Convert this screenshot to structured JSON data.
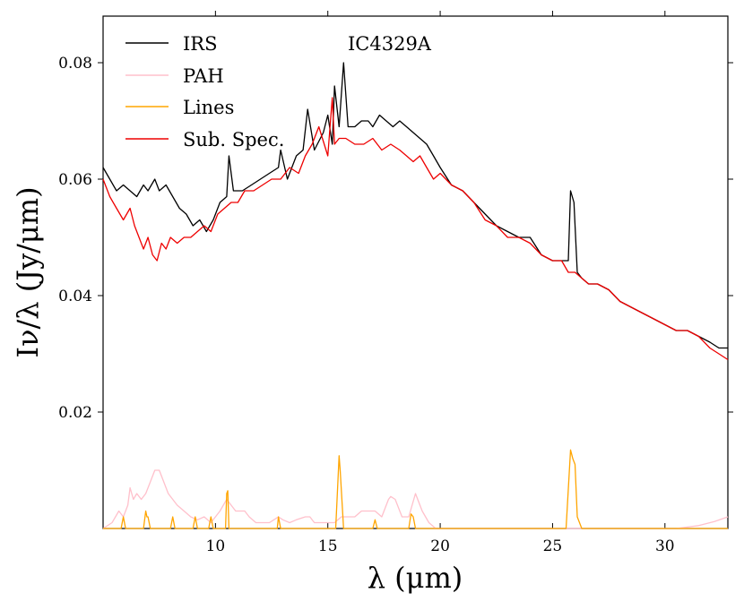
{
  "chart_data": {
    "type": "line",
    "annotation": "IC4329A",
    "xlabel": "λ (μm)",
    "ylabel": "Iν/λ (Jy/μm)",
    "xlim": [
      5.0,
      32.8
    ],
    "ylim": [
      0.0,
      0.088
    ],
    "xticks": [
      10,
      15,
      20,
      25,
      30
    ],
    "xtick_labels": [
      "10",
      "15",
      "20",
      "25",
      "30"
    ],
    "yticks": [
      0.02,
      0.04,
      0.06,
      0.08
    ],
    "ytick_labels": [
      "0.02",
      "0.04",
      "0.06",
      "0.08"
    ],
    "legend_position": "top-left",
    "series": [
      {
        "name": "IRS",
        "color": "#000000",
        "x": [
          5.0,
          5.3,
          5.6,
          5.9,
          6.2,
          6.5,
          6.8,
          7.0,
          7.3,
          7.5,
          7.8,
          8.1,
          8.4,
          8.7,
          9.0,
          9.3,
          9.6,
          9.9,
          10.2,
          10.5,
          10.6,
          10.8,
          11.2,
          11.6,
          12.0,
          12.4,
          12.8,
          12.9,
          13.2,
          13.6,
          13.9,
          14.1,
          14.4,
          14.8,
          15.0,
          15.2,
          15.3,
          15.5,
          15.7,
          15.9,
          16.2,
          16.5,
          16.8,
          17.0,
          17.3,
          17.6,
          17.9,
          18.2,
          18.5,
          18.8,
          19.1,
          19.4,
          19.7,
          20.0,
          20.5,
          21.0,
          21.5,
          22.0,
          22.5,
          23.0,
          23.5,
          24.0,
          24.5,
          25.0,
          25.4,
          25.7,
          25.8,
          25.95,
          26.1,
          26.3,
          26.6,
          27.0,
          27.5,
          28.0,
          28.5,
          29.0,
          29.5,
          30.0,
          30.5,
          31.0,
          31.5,
          32.0,
          32.4,
          32.8
        ],
        "y": [
          0.062,
          0.06,
          0.058,
          0.059,
          0.058,
          0.057,
          0.059,
          0.058,
          0.06,
          0.058,
          0.059,
          0.057,
          0.055,
          0.054,
          0.052,
          0.053,
          0.051,
          0.053,
          0.056,
          0.057,
          0.064,
          0.058,
          0.058,
          0.059,
          0.06,
          0.061,
          0.062,
          0.065,
          0.06,
          0.064,
          0.065,
          0.072,
          0.065,
          0.068,
          0.071,
          0.066,
          0.076,
          0.069,
          0.08,
          0.069,
          0.069,
          0.07,
          0.07,
          0.069,
          0.071,
          0.07,
          0.069,
          0.07,
          0.069,
          0.068,
          0.067,
          0.066,
          0.064,
          0.062,
          0.059,
          0.058,
          0.056,
          0.054,
          0.052,
          0.051,
          0.05,
          0.05,
          0.047,
          0.046,
          0.046,
          0.046,
          0.058,
          0.056,
          0.044,
          0.043,
          0.042,
          0.042,
          0.041,
          0.039,
          0.038,
          0.037,
          0.036,
          0.035,
          0.034,
          0.034,
          0.033,
          0.032,
          0.031,
          0.031
        ]
      },
      {
        "name": "PAH",
        "color": "#ffc0cb",
        "x": [
          5.0,
          5.4,
          5.7,
          5.9,
          6.1,
          6.2,
          6.35,
          6.5,
          6.7,
          6.9,
          7.1,
          7.3,
          7.5,
          7.7,
          7.9,
          8.1,
          8.3,
          8.6,
          8.9,
          9.2,
          9.5,
          9.8,
          10.2,
          10.5,
          10.7,
          10.9,
          11.1,
          11.3,
          11.5,
          11.8,
          12.1,
          12.4,
          12.6,
          12.8,
          13.0,
          13.3,
          13.6,
          14.0,
          14.2,
          14.4,
          14.7,
          15.0,
          15.3,
          15.6,
          15.9,
          16.2,
          16.5,
          16.8,
          17.1,
          17.4,
          17.7,
          17.8,
          18.0,
          18.3,
          18.6,
          18.9,
          19.2,
          19.5,
          19.8,
          20.2,
          21.0,
          23.0,
          25.0,
          27.0,
          29.0,
          30.5,
          31.5,
          32.2,
          32.8
        ],
        "y": [
          0.0,
          0.001,
          0.003,
          0.002,
          0.004,
          0.007,
          0.005,
          0.006,
          0.005,
          0.006,
          0.008,
          0.01,
          0.01,
          0.008,
          0.006,
          0.005,
          0.004,
          0.003,
          0.002,
          0.0015,
          0.002,
          0.001,
          0.003,
          0.005,
          0.004,
          0.003,
          0.003,
          0.003,
          0.002,
          0.001,
          0.001,
          0.001,
          0.0015,
          0.002,
          0.0015,
          0.001,
          0.0015,
          0.002,
          0.002,
          0.001,
          0.001,
          0.001,
          0.001,
          0.002,
          0.002,
          0.002,
          0.003,
          0.003,
          0.003,
          0.002,
          0.005,
          0.0055,
          0.005,
          0.002,
          0.002,
          0.006,
          0.003,
          0.001,
          0.0,
          0.0,
          0.0,
          0.0,
          0.0,
          0.0,
          0.0,
          0.0,
          0.0005,
          0.0012,
          0.002
        ]
      },
      {
        "name": "Lines",
        "color": "#ffa500",
        "x": [
          5.0,
          5.8,
          5.9,
          6.0,
          6.1,
          6.8,
          6.9,
          6.95,
          7.0,
          7.1,
          8.0,
          8.1,
          8.2,
          9.0,
          9.1,
          9.2,
          9.7,
          9.8,
          9.9,
          10.45,
          10.5,
          10.55,
          10.6,
          12.75,
          12.8,
          12.9,
          15.35,
          15.5,
          15.55,
          15.7,
          17.0,
          17.1,
          17.2,
          18.6,
          18.7,
          18.8,
          18.9,
          25.6,
          25.8,
          25.9,
          26.0,
          26.1,
          26.3,
          32.8
        ],
        "y": [
          0,
          0,
          0.002,
          0,
          0,
          0,
          0.003,
          0.002,
          0.002,
          0,
          0,
          0.002,
          0,
          0,
          0.002,
          0,
          0,
          0.002,
          0,
          0,
          0.006,
          0.0065,
          0,
          0,
          0.002,
          0,
          0,
          0.0125,
          0.01,
          0,
          0,
          0.0015,
          0,
          0,
          0.0025,
          0.002,
          0,
          0,
          0.0135,
          0.012,
          0.011,
          0.002,
          0,
          0
        ]
      },
      {
        "name": "Sub. Spec.",
        "color": "#ee0000",
        "x": [
          5.0,
          5.3,
          5.6,
          5.9,
          6.2,
          6.4,
          6.6,
          6.8,
          7.0,
          7.2,
          7.4,
          7.6,
          7.8,
          8.0,
          8.3,
          8.6,
          8.9,
          9.2,
          9.5,
          9.8,
          10.1,
          10.4,
          10.7,
          11.0,
          11.3,
          11.7,
          12.1,
          12.5,
          12.9,
          13.3,
          13.7,
          14.0,
          14.3,
          14.6,
          15.0,
          15.2,
          15.3,
          15.5,
          15.8,
          16.2,
          16.6,
          17.0,
          17.4,
          17.8,
          18.2,
          18.5,
          18.8,
          19.1,
          19.4,
          19.7,
          20.0,
          20.5,
          21.0,
          21.5,
          22.0,
          22.5,
          23.0,
          23.5,
          24.0,
          24.5,
          25.0,
          25.4,
          25.7,
          26.0,
          26.3,
          26.6,
          27.0,
          27.5,
          28.0,
          28.5,
          29.0,
          29.5,
          30.0,
          30.5,
          31.0,
          31.5,
          32.0,
          32.4,
          32.8
        ],
        "y": [
          0.06,
          0.057,
          0.055,
          0.053,
          0.055,
          0.052,
          0.05,
          0.048,
          0.05,
          0.047,
          0.046,
          0.049,
          0.048,
          0.05,
          0.049,
          0.05,
          0.05,
          0.051,
          0.052,
          0.051,
          0.054,
          0.055,
          0.056,
          0.056,
          0.058,
          0.058,
          0.059,
          0.06,
          0.06,
          0.062,
          0.061,
          0.064,
          0.066,
          0.069,
          0.064,
          0.074,
          0.066,
          0.067,
          0.067,
          0.066,
          0.066,
          0.067,
          0.065,
          0.066,
          0.065,
          0.064,
          0.063,
          0.064,
          0.062,
          0.06,
          0.061,
          0.059,
          0.058,
          0.056,
          0.053,
          0.052,
          0.05,
          0.05,
          0.049,
          0.047,
          0.046,
          0.046,
          0.044,
          0.044,
          0.043,
          0.042,
          0.042,
          0.041,
          0.039,
          0.038,
          0.037,
          0.036,
          0.035,
          0.034,
          0.034,
          0.033,
          0.031,
          0.03,
          0.029
        ]
      }
    ]
  }
}
